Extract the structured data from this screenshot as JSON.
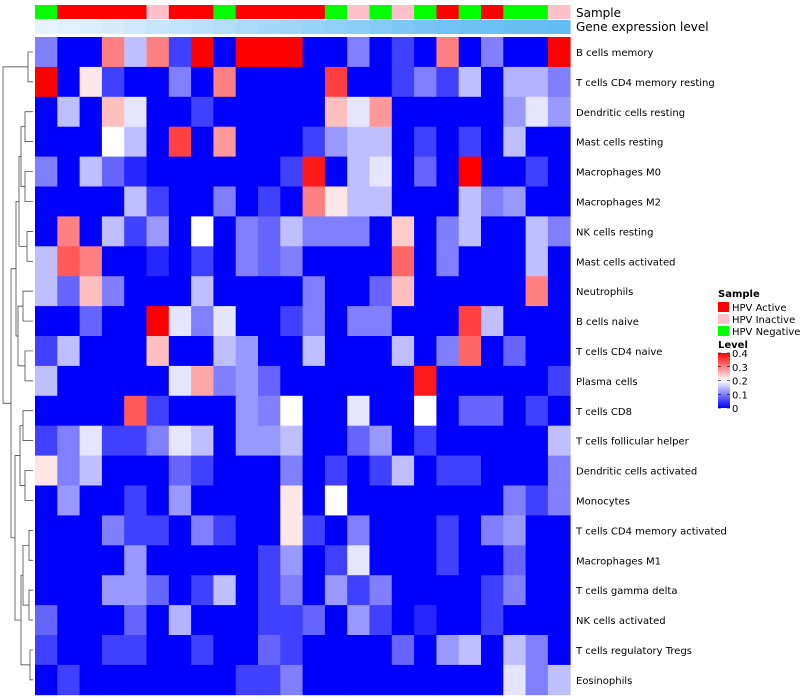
{
  "chart_data": {
    "type": "heatmap",
    "annotations": {
      "sample_title": "Sample",
      "gene_title": "Gene expression level"
    },
    "sample_groups": [
      "HPV Active",
      "HPV Inactive",
      "HPV Negative"
    ],
    "sample_colors": {
      "HPV Active": "#ff0000",
      "HPV Inactive": "#ffc0cb",
      "HPV Negative": "#00ff00"
    },
    "columns": [
      {
        "sample": "HPV Negative",
        "gene": 0.0
      },
      {
        "sample": "HPV Active",
        "gene": 0.05
      },
      {
        "sample": "HPV Active",
        "gene": 0.1
      },
      {
        "sample": "HPV Active",
        "gene": 0.15
      },
      {
        "sample": "HPV Active",
        "gene": 0.2
      },
      {
        "sample": "HPV Inactive",
        "gene": 0.25
      },
      {
        "sample": "HPV Active",
        "gene": 0.3
      },
      {
        "sample": "HPV Active",
        "gene": 0.35
      },
      {
        "sample": "HPV Negative",
        "gene": 0.4
      },
      {
        "sample": "HPV Active",
        "gene": 0.45
      },
      {
        "sample": "HPV Active",
        "gene": 0.5
      },
      {
        "sample": "HPV Active",
        "gene": 0.55
      },
      {
        "sample": "HPV Active",
        "gene": 0.6
      },
      {
        "sample": "HPV Negative",
        "gene": 0.65
      },
      {
        "sample": "HPV Inactive",
        "gene": 0.7
      },
      {
        "sample": "HPV Negative",
        "gene": 0.75
      },
      {
        "sample": "HPV Inactive",
        "gene": 0.8
      },
      {
        "sample": "HPV Negative",
        "gene": 0.85
      },
      {
        "sample": "HPV Active",
        "gene": 0.9
      },
      {
        "sample": "HPV Negative",
        "gene": 0.92
      },
      {
        "sample": "HPV Active",
        "gene": 0.94
      },
      {
        "sample": "HPV Negative",
        "gene": 0.96
      },
      {
        "sample": "HPV Negative",
        "gene": 0.98
      },
      {
        "sample": "HPV Inactive",
        "gene": 1.0
      }
    ],
    "rows": [
      "B cells memory",
      "T cells CD4 memory resting",
      "Dendritic cells resting",
      "Mast cells resting",
      "Macrophages M0",
      "Macrophages M2",
      "NK cells resting",
      "Mast cells activated",
      "Neutrophils",
      "B cells naive",
      "T cells CD4 naive",
      "Plasma cells",
      "T cells CD8",
      "T cells follicular helper",
      "Dendritic cells activated",
      "Monocytes",
      "T cells CD4 memory activated",
      "Macrophages M1",
      "T cells gamma delta",
      "NK cells activated",
      "T cells regulatory  Tregs",
      "Eosinophils"
    ],
    "values": [
      [
        0.1,
        0.0,
        0.0,
        0.3,
        0.15,
        0.3,
        0.05,
        0.4,
        0.0,
        0.4,
        0.4,
        0.4,
        0.0,
        0.0,
        0.1,
        0.0,
        0.05,
        0.0,
        0.3,
        0.0,
        0.1,
        0.0,
        0.0,
        0.4
      ],
      [
        0.4,
        0.0,
        0.22,
        0.05,
        0.0,
        0.0,
        0.1,
        0.0,
        0.3,
        0.0,
        0.0,
        0.0,
        0.0,
        0.35,
        0.0,
        0.0,
        0.05,
        0.1,
        0.05,
        0.15,
        0.0,
        0.14,
        0.14,
        0.1
      ],
      [
        0.0,
        0.15,
        0.0,
        0.25,
        0.18,
        0.0,
        0.0,
        0.05,
        0.0,
        0.0,
        0.0,
        0.0,
        0.0,
        0.25,
        0.18,
        0.28,
        0.0,
        0.0,
        0.0,
        0.0,
        0.0,
        0.12,
        0.18,
        0.12
      ],
      [
        0.0,
        0.0,
        0.0,
        0.2,
        0.15,
        0.0,
        0.35,
        0.0,
        0.28,
        0.0,
        0.0,
        0.0,
        0.05,
        0.12,
        0.15,
        0.15,
        0.0,
        0.05,
        0.0,
        0.05,
        0.0,
        0.15,
        0.0,
        0.0
      ],
      [
        0.1,
        0.0,
        0.15,
        0.08,
        0.03,
        0.0,
        0.0,
        0.0,
        0.0,
        0.0,
        0.0,
        0.05,
        0.38,
        0.0,
        0.15,
        0.18,
        0.0,
        0.08,
        0.0,
        0.4,
        0.0,
        0.0,
        0.05,
        0.0
      ],
      [
        0.0,
        0.0,
        0.0,
        0.0,
        0.15,
        0.05,
        0.0,
        0.0,
        0.1,
        0.0,
        0.05,
        0.0,
        0.3,
        0.22,
        0.15,
        0.15,
        0.0,
        0.0,
        0.0,
        0.15,
        0.1,
        0.12,
        0.0,
        0.0
      ],
      [
        0.0,
        0.3,
        0.0,
        0.15,
        0.05,
        0.12,
        0.0,
        0.2,
        0.0,
        0.1,
        0.08,
        0.15,
        0.1,
        0.1,
        0.1,
        0.0,
        0.24,
        0.0,
        0.1,
        0.15,
        0.0,
        0.0,
        0.15,
        0.1
      ],
      [
        0.15,
        0.33,
        0.3,
        0.0,
        0.0,
        0.03,
        0.0,
        0.05,
        0.0,
        0.1,
        0.08,
        0.1,
        0.0,
        0.0,
        0.0,
        0.0,
        0.32,
        0.0,
        0.1,
        0.0,
        0.0,
        0.0,
        0.15,
        0.0
      ],
      [
        0.15,
        0.08,
        0.25,
        0.1,
        0.0,
        0.0,
        0.0,
        0.15,
        0.0,
        0.0,
        0.0,
        0.0,
        0.1,
        0.0,
        0.0,
        0.08,
        0.25,
        0.0,
        0.0,
        0.0,
        0.0,
        0.0,
        0.3,
        0.0
      ],
      [
        0.0,
        0.0,
        0.08,
        0.0,
        0.0,
        0.4,
        0.18,
        0.1,
        0.18,
        0.0,
        0.0,
        0.05,
        0.1,
        0.0,
        0.1,
        0.1,
        0.0,
        0.0,
        0.0,
        0.35,
        0.15,
        0.0,
        0.0,
        0.0
      ],
      [
        0.05,
        0.15,
        0.0,
        0.0,
        0.0,
        0.25,
        0.0,
        0.0,
        0.15,
        0.12,
        0.0,
        0.0,
        0.15,
        0.0,
        0.0,
        0.0,
        0.15,
        0.0,
        0.1,
        0.32,
        0.0,
        0.08,
        0.0,
        0.0
      ],
      [
        0.15,
        0.0,
        0.0,
        0.0,
        0.0,
        0.0,
        0.18,
        0.27,
        0.1,
        0.12,
        0.08,
        0.0,
        0.0,
        0.0,
        0.0,
        0.0,
        0.0,
        0.38,
        0.0,
        0.0,
        0.0,
        0.0,
        0.0,
        0.05
      ],
      [
        0.0,
        0.0,
        0.0,
        0.0,
        0.33,
        0.05,
        0.0,
        0.0,
        0.0,
        0.12,
        0.1,
        0.2,
        0.0,
        0.0,
        0.18,
        0.0,
        0.0,
        0.2,
        0.0,
        0.08,
        0.08,
        0.0,
        0.05,
        0.0
      ],
      [
        0.05,
        0.1,
        0.18,
        0.05,
        0.05,
        0.1,
        0.18,
        0.15,
        0.0,
        0.12,
        0.12,
        0.15,
        0.0,
        0.0,
        0.08,
        0.12,
        0.0,
        0.05,
        0.0,
        0.0,
        0.0,
        0.0,
        0.0,
        0.15
      ],
      [
        0.22,
        0.1,
        0.15,
        0.0,
        0.0,
        0.0,
        0.08,
        0.05,
        0.0,
        0.0,
        0.0,
        0.1,
        0.0,
        0.05,
        0.0,
        0.05,
        0.15,
        0.0,
        0.05,
        0.05,
        0.0,
        0.0,
        0.0,
        0.1
      ],
      [
        0.0,
        0.12,
        0.0,
        0.0,
        0.05,
        0.0,
        0.12,
        0.0,
        0.0,
        0.0,
        0.0,
        0.22,
        0.0,
        0.2,
        0.0,
        0.0,
        0.0,
        0.0,
        0.0,
        0.0,
        0.0,
        0.1,
        0.05,
        0.1
      ],
      [
        0.0,
        0.0,
        0.0,
        0.1,
        0.05,
        0.05,
        0.0,
        0.1,
        0.05,
        0.0,
        0.0,
        0.22,
        0.05,
        0.0,
        0.1,
        0.0,
        0.0,
        0.0,
        0.05,
        0.0,
        0.1,
        0.12,
        0.0,
        0.0
      ],
      [
        0.0,
        0.0,
        0.0,
        0.0,
        0.12,
        0.0,
        0.0,
        0.0,
        0.0,
        0.0,
        0.05,
        0.12,
        0.0,
        0.05,
        0.18,
        0.0,
        0.0,
        0.0,
        0.05,
        0.0,
        0.0,
        0.08,
        0.0,
        0.0
      ],
      [
        0.0,
        0.0,
        0.0,
        0.12,
        0.12,
        0.08,
        0.0,
        0.05,
        0.15,
        0.0,
        0.05,
        0.1,
        0.0,
        0.12,
        0.05,
        0.1,
        0.0,
        0.0,
        0.0,
        0.0,
        0.05,
        0.1,
        0.0,
        0.0
      ],
      [
        0.08,
        0.0,
        0.0,
        0.0,
        0.08,
        0.0,
        0.14,
        0.0,
        0.0,
        0.0,
        0.05,
        0.05,
        0.08,
        0.0,
        0.12,
        0.05,
        0.0,
        0.03,
        0.0,
        0.0,
        0.05,
        0.0,
        0.0,
        0.0
      ],
      [
        0.05,
        0.0,
        0.0,
        0.05,
        0.05,
        0.0,
        0.0,
        0.05,
        0.0,
        0.0,
        0.08,
        0.05,
        0.0,
        0.0,
        0.0,
        0.0,
        0.08,
        0.0,
        0.12,
        0.15,
        0.0,
        0.15,
        0.1,
        0.0
      ],
      [
        0.0,
        0.05,
        0.0,
        0.0,
        0.0,
        0.0,
        0.0,
        0.0,
        0.0,
        0.05,
        0.05,
        0.1,
        0.0,
        0.0,
        0.0,
        0.0,
        0.0,
        0.0,
        0.0,
        0.0,
        0.0,
        0.18,
        0.1,
        0.15
      ]
    ],
    "color_scale": {
      "low": "#0000ff",
      "mid": "#ffffff",
      "high": "#ff0000",
      "min": 0,
      "mid_value": 0.2,
      "max": 0.4
    },
    "gene_scale": {
      "low": "#e8f4fd",
      "high": "#63bdf4"
    },
    "legend": {
      "sample_title": "Sample",
      "level_title": "Level",
      "ticks": [
        "0.4",
        "0.3",
        "0.2",
        "0.1",
        "0"
      ],
      "tick_values": [
        0.4,
        0.3,
        0.2,
        0.1,
        0.0
      ]
    }
  }
}
